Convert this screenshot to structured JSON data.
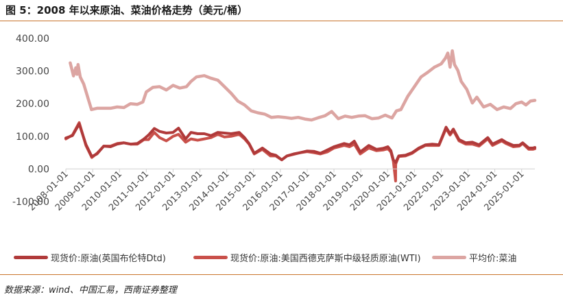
{
  "title": "图 5：2008 年以来原油、菜油价格走势（美元/桶）",
  "source": "数据来源：wind、中国汇易，西南证券整理",
  "colors": {
    "brent": "#b03a3a",
    "wti": "#c9504a",
    "rapeseed": "#dca5a2",
    "accent_rule": "#c8732a",
    "axis": "#d0d0d0"
  },
  "chart_data": {
    "type": "line",
    "title": "图 5：2008 年以来原油、菜油价格走势（美元/桶）",
    "xlabel": "",
    "ylabel": "",
    "ylim": [
      -100,
      400
    ],
    "yticks": [
      -100,
      0,
      100,
      200,
      300,
      400
    ],
    "ytick_labels": [
      "-100.00",
      "0.00",
      "100.00",
      "200.00",
      "300.00",
      "400.00"
    ],
    "xlim": [
      "2008-01-01",
      "2025-06-30"
    ],
    "xticks": [
      "2008-01-01",
      "2009-01-01",
      "2010-01-01",
      "2011-01-01",
      "2012-01-01",
      "2013-01-01",
      "2014-01-01",
      "2015-01-01",
      "2016-01-01",
      "2017-01-01",
      "2018-01-01",
      "2019-01-01",
      "2020-01-01",
      "2021-01-01",
      "2022-01-01",
      "2023-01-01",
      "2024-01-01",
      "2025-01-01"
    ],
    "grid": false,
    "legend_position": "bottom",
    "series": [
      {
        "name": "现货价:原油(英国布伦特Dtd)",
        "color": "#b03a3a",
        "x": [
          "2008-01-01",
          "2008-04-01",
          "2008-07-01",
          "2008-10-01",
          "2008-12-20",
          "2009-03-01",
          "2009-06-01",
          "2009-09-01",
          "2009-12-01",
          "2010-03-01",
          "2010-06-01",
          "2010-09-01",
          "2010-12-01",
          "2011-02-01",
          "2011-04-20",
          "2011-07-01",
          "2011-10-01",
          "2012-01-01",
          "2012-03-15",
          "2012-06-20",
          "2012-09-01",
          "2012-12-01",
          "2013-03-01",
          "2013-06-01",
          "2013-09-01",
          "2013-12-01",
          "2014-03-01",
          "2014-06-20",
          "2014-09-01",
          "2014-11-01",
          "2015-01-10",
          "2015-05-01",
          "2015-08-20",
          "2015-11-01",
          "2016-01-20",
          "2016-04-01",
          "2016-07-01",
          "2016-10-01",
          "2017-01-01",
          "2017-04-01",
          "2017-07-01",
          "2017-10-01",
          "2018-01-01",
          "2018-05-20",
          "2018-08-01",
          "2018-10-05",
          "2018-12-25",
          "2019-04-20",
          "2019-08-01",
          "2019-11-01",
          "2020-01-05",
          "2020-02-15",
          "2020-03-20",
          "2020-04-21",
          "2020-06-01",
          "2020-09-01",
          "2020-12-01",
          "2021-03-01",
          "2021-06-01",
          "2021-09-01",
          "2021-12-01",
          "2022-03-08",
          "2022-05-01",
          "2022-06-15",
          "2022-09-01",
          "2022-12-01",
          "2023-03-01",
          "2023-06-01",
          "2023-09-27",
          "2023-12-01",
          "2024-04-05",
          "2024-06-01",
          "2024-09-10",
          "2024-12-01",
          "2025-01-15",
          "2025-04-08",
          "2025-06-01",
          "2025-06-30"
        ],
        "values": [
          95,
          102,
          138,
          75,
          38,
          46,
          70,
          68,
          76,
          80,
          76,
          78,
          92,
          104,
          124,
          115,
          110,
          112,
          125,
          92,
          112,
          108,
          108,
          102,
          112,
          110,
          108,
          112,
          96,
          78,
          48,
          64,
          46,
          42,
          28,
          40,
          46,
          50,
          55,
          54,
          48,
          58,
          68,
          78,
          74,
          85,
          52,
          72,
          60,
          63,
          68,
          56,
          28,
          20,
          40,
          42,
          50,
          64,
          74,
          76,
          74,
          128,
          108,
          122,
          90,
          80,
          82,
          74,
          96,
          76,
          90,
          82,
          72,
          73,
          80,
          64,
          64,
          66
        ]
      },
      {
        "name": "现货价:原油:美国西德克萨斯中级轻质原油(WTI)",
        "color": "#c9504a",
        "x": [
          "2008-01-01",
          "2008-04-01",
          "2008-07-01",
          "2008-10-01",
          "2008-12-20",
          "2009-03-01",
          "2009-06-01",
          "2009-09-01",
          "2009-12-01",
          "2010-03-01",
          "2010-06-01",
          "2010-09-01",
          "2010-12-01",
          "2011-02-01",
          "2011-04-20",
          "2011-07-01",
          "2011-10-01",
          "2012-01-01",
          "2012-03-15",
          "2012-06-20",
          "2012-09-01",
          "2012-12-01",
          "2013-03-01",
          "2013-06-01",
          "2013-09-01",
          "2013-12-01",
          "2014-03-01",
          "2014-06-20",
          "2014-09-01",
          "2014-11-01",
          "2015-01-10",
          "2015-05-01",
          "2015-08-20",
          "2015-11-01",
          "2016-01-20",
          "2016-04-01",
          "2016-07-01",
          "2016-10-01",
          "2017-01-01",
          "2017-04-01",
          "2017-07-01",
          "2017-10-01",
          "2018-01-01",
          "2018-05-20",
          "2018-08-01",
          "2018-10-05",
          "2018-12-25",
          "2019-04-20",
          "2019-08-01",
          "2019-11-01",
          "2020-01-05",
          "2020-02-15",
          "2020-03-20",
          "2020-04-20",
          "2020-04-21",
          "2020-04-22",
          "2020-06-01",
          "2020-09-01",
          "2020-12-01",
          "2021-03-01",
          "2021-06-01",
          "2021-09-01",
          "2021-12-01",
          "2022-03-08",
          "2022-05-01",
          "2022-06-15",
          "2022-09-01",
          "2022-12-01",
          "2023-03-01",
          "2023-06-01",
          "2023-09-27",
          "2023-12-01",
          "2024-04-05",
          "2024-06-01",
          "2024-09-10",
          "2024-12-01",
          "2025-01-15",
          "2025-04-08",
          "2025-06-01",
          "2025-06-30"
        ],
        "values": [
          92,
          104,
          142,
          72,
          35,
          48,
          70,
          70,
          78,
          80,
          76,
          76,
          90,
          90,
          112,
          96,
          86,
          100,
          106,
          82,
          92,
          88,
          92,
          96,
          106,
          98,
          100,
          106,
          92,
          76,
          46,
          60,
          40,
          40,
          28,
          40,
          45,
          50,
          53,
          50,
          46,
          52,
          64,
          72,
          68,
          76,
          46,
          64,
          56,
          58,
          62,
          52,
          24,
          -37,
          10,
          16,
          38,
          40,
          48,
          62,
          72,
          72,
          72,
          124,
          104,
          118,
          86,
          76,
          76,
          70,
          92,
          72,
          86,
          78,
          68,
          70,
          78,
          60,
          60,
          62
        ]
      },
      {
        "name": "平均价:菜油",
        "color": "#dca5a2",
        "x": [
          "2008-03-01",
          "2008-04-15",
          "2008-05-15",
          "2008-06-01",
          "2008-06-15",
          "2008-07-15",
          "2008-09-01",
          "2008-11-01",
          "2008-12-15",
          "2009-03-01",
          "2009-06-01",
          "2009-09-01",
          "2009-12-01",
          "2010-03-01",
          "2010-06-01",
          "2010-09-01",
          "2010-11-15",
          "2011-01-01",
          "2011-04-01",
          "2011-07-01",
          "2011-10-01",
          "2012-01-01",
          "2012-04-01",
          "2012-07-01",
          "2012-09-01",
          "2012-11-15",
          "2013-03-01",
          "2013-06-01",
          "2013-09-01",
          "2013-12-01",
          "2014-03-01",
          "2014-06-01",
          "2014-09-01",
          "2014-12-01",
          "2015-03-01",
          "2015-06-01",
          "2015-09-01",
          "2015-12-01",
          "2016-03-01",
          "2016-06-01",
          "2016-09-01",
          "2016-12-01",
          "2017-03-01",
          "2017-06-01",
          "2017-09-01",
          "2017-12-01",
          "2018-03-01",
          "2018-06-01",
          "2018-09-01",
          "2018-12-01",
          "2019-03-01",
          "2019-06-01",
          "2019-09-01",
          "2019-12-01",
          "2020-03-01",
          "2020-05-01",
          "2020-07-01",
          "2020-10-01",
          "2021-01-01",
          "2021-04-01",
          "2021-07-01",
          "2021-10-01",
          "2022-01-01",
          "2022-03-01",
          "2022-04-01",
          "2022-05-01",
          "2022-06-01",
          "2022-07-01",
          "2022-08-15",
          "2022-10-01",
          "2022-12-15",
          "2023-03-01",
          "2023-05-01",
          "2023-08-01",
          "2023-11-01",
          "2024-02-01",
          "2024-05-01",
          "2024-08-01",
          "2024-10-15",
          "2025-01-01",
          "2025-03-01",
          "2025-05-01",
          "2025-06-30"
        ],
        "values": [
          325,
          285,
          310,
          290,
          320,
          282,
          260,
          215,
          182,
          186,
          186,
          186,
          190,
          188,
          200,
          198,
          205,
          236,
          250,
          252,
          242,
          256,
          248,
          252,
          268,
          282,
          286,
          278,
          272,
          252,
          232,
          208,
          196,
          178,
          172,
          168,
          158,
          160,
          158,
          155,
          158,
          153,
          150,
          157,
          163,
          176,
          154,
          162,
          158,
          162,
          163,
          154,
          156,
          165,
          156,
          178,
          182,
          222,
          252,
          282,
          296,
          312,
          322,
          340,
          355,
          312,
          362,
          320,
          302,
          268,
          244,
          202,
          220,
          190,
          198,
          182,
          190,
          185,
          200,
          205,
          196,
          208,
          210
        ]
      }
    ]
  }
}
